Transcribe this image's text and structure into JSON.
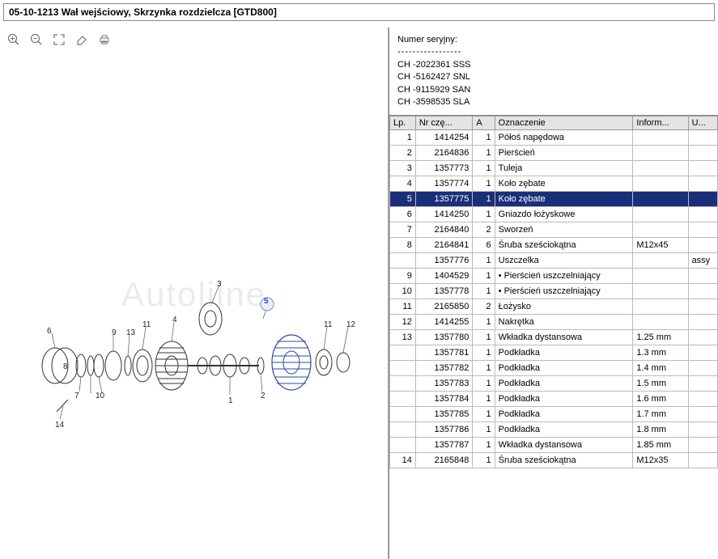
{
  "title": "05-10-1213 Wał wejściowy, Skrzynka rozdzielcza [GTD800]",
  "watermark": "Autoliine",
  "serial": {
    "label": "Numer seryjny:",
    "lines": [
      "CH -2022361 SSS",
      "CH -5162427 SNL",
      "CH -9115929 SAN",
      "CH -3598535 SLA"
    ]
  },
  "columns": {
    "lp": "Lp.",
    "nr": "Nr czę...",
    "a": "A",
    "oz": "Oznaczenie",
    "inf": "Inform...",
    "u": "U..."
  },
  "selected_row_lp": "5",
  "callouts": [
    "1",
    "2",
    "3",
    "4",
    "5",
    "6",
    "7",
    "8",
    "9",
    "10",
    "11",
    "12",
    "13",
    "14"
  ],
  "rows": [
    {
      "lp": "1",
      "nr": "1414254",
      "a": "1",
      "oz": "Półoś napędowa",
      "inf": "",
      "u": ""
    },
    {
      "lp": "2",
      "nr": "2164836",
      "a": "1",
      "oz": "Pierścień",
      "inf": "",
      "u": ""
    },
    {
      "lp": "3",
      "nr": "1357773",
      "a": "1",
      "oz": "Tuleja",
      "inf": "",
      "u": ""
    },
    {
      "lp": "4",
      "nr": "1357774",
      "a": "1",
      "oz": "Koło zębate",
      "inf": "",
      "u": ""
    },
    {
      "lp": "5",
      "nr": "1357775",
      "a": "1",
      "oz": "Koło zębate",
      "inf": "",
      "u": ""
    },
    {
      "lp": "6",
      "nr": "1414250",
      "a": "1",
      "oz": "Gniazdo łożyskowe",
      "inf": "",
      "u": ""
    },
    {
      "lp": "7",
      "nr": "2164840",
      "a": "2",
      "oz": "Sworzeń",
      "inf": "",
      "u": ""
    },
    {
      "lp": "8",
      "nr": "2164841",
      "a": "6",
      "oz": "Śruba sześciokątna",
      "inf": "M12x45",
      "u": ""
    },
    {
      "lp": "",
      "nr": "1357776",
      "a": "1",
      "oz": "Uszczelka",
      "inf": "",
      "u": "assy"
    },
    {
      "lp": "9",
      "nr": "1404529",
      "a": "1",
      "oz": "• Pierścień uszczelniający",
      "inf": "",
      "u": ""
    },
    {
      "lp": "10",
      "nr": "1357778",
      "a": "1",
      "oz": "• Pierścień uszczelniający",
      "inf": "",
      "u": ""
    },
    {
      "lp": "11",
      "nr": "2165850",
      "a": "2",
      "oz": "Łożysko",
      "inf": "",
      "u": ""
    },
    {
      "lp": "12",
      "nr": "1414255",
      "a": "1",
      "oz": "Nakrętka",
      "inf": "",
      "u": ""
    },
    {
      "lp": "13",
      "nr": "1357780",
      "a": "1",
      "oz": "Wkładka dystansowa",
      "inf": "1.25 mm",
      "u": ""
    },
    {
      "lp": "",
      "nr": "1357781",
      "a": "1",
      "oz": "Podkładka",
      "inf": "1.3 mm",
      "u": ""
    },
    {
      "lp": "",
      "nr": "1357782",
      "a": "1",
      "oz": "Podkładka",
      "inf": "1.4 mm",
      "u": ""
    },
    {
      "lp": "",
      "nr": "1357783",
      "a": "1",
      "oz": "Podkładka",
      "inf": "1.5 mm",
      "u": ""
    },
    {
      "lp": "",
      "nr": "1357784",
      "a": "1",
      "oz": "Podkładka",
      "inf": "1.6 mm",
      "u": ""
    },
    {
      "lp": "",
      "nr": "1357785",
      "a": "1",
      "oz": "Podkładka",
      "inf": "1.7 mm",
      "u": ""
    },
    {
      "lp": "",
      "nr": "1357786",
      "a": "1",
      "oz": "Podkładka",
      "inf": "1.8 mm",
      "u": ""
    },
    {
      "lp": "",
      "nr": "1357787",
      "a": "1",
      "oz": "Wkładka dystansowa",
      "inf": "1.85 mm",
      "u": ""
    },
    {
      "lp": "14",
      "nr": "2165848",
      "a": "1",
      "oz": "Śruba sześciokątna",
      "inf": "M12x35",
      "u": ""
    }
  ]
}
